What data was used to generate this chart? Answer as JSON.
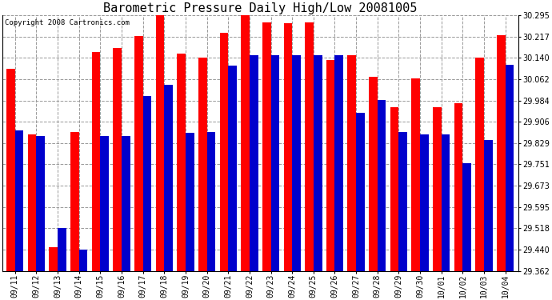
{
  "title": "Barometric Pressure Daily High/Low 20081005",
  "copyright": "Copyright 2008 Cartronics.com",
  "dates": [
    "09/11",
    "09/12",
    "09/13",
    "09/14",
    "09/15",
    "09/16",
    "09/17",
    "09/18",
    "09/19",
    "09/20",
    "09/21",
    "09/22",
    "09/23",
    "09/24",
    "09/25",
    "09/26",
    "09/27",
    "09/28",
    "09/29",
    "09/30",
    "10/01",
    "10/02",
    "10/03",
    "10/04"
  ],
  "highs": [
    30.1,
    29.86,
    29.45,
    29.87,
    30.16,
    30.175,
    30.22,
    30.295,
    30.155,
    30.14,
    30.23,
    30.295,
    30.27,
    30.265,
    30.27,
    30.13,
    30.15,
    30.07,
    29.96,
    30.065,
    29.96,
    29.975,
    30.14,
    30.222
  ],
  "lows": [
    29.875,
    29.855,
    29.52,
    29.44,
    29.855,
    29.855,
    30.0,
    30.04,
    29.865,
    29.87,
    30.11,
    30.15,
    30.15,
    30.15,
    30.15,
    30.15,
    29.94,
    29.985,
    29.87,
    29.86,
    29.86,
    29.755,
    29.84,
    30.115
  ],
  "high_color": "#ff0000",
  "low_color": "#0000cc",
  "bg_color": "#ffffff",
  "grid_color": "#999999",
  "ymin": 29.362,
  "ymax": 30.295,
  "yticks": [
    29.362,
    29.44,
    29.518,
    29.595,
    29.673,
    29.751,
    29.829,
    29.906,
    29.984,
    30.062,
    30.14,
    30.217,
    30.295
  ],
  "bar_width": 0.4,
  "title_fontsize": 11,
  "tick_fontsize": 7,
  "copyright_fontsize": 6.5
}
